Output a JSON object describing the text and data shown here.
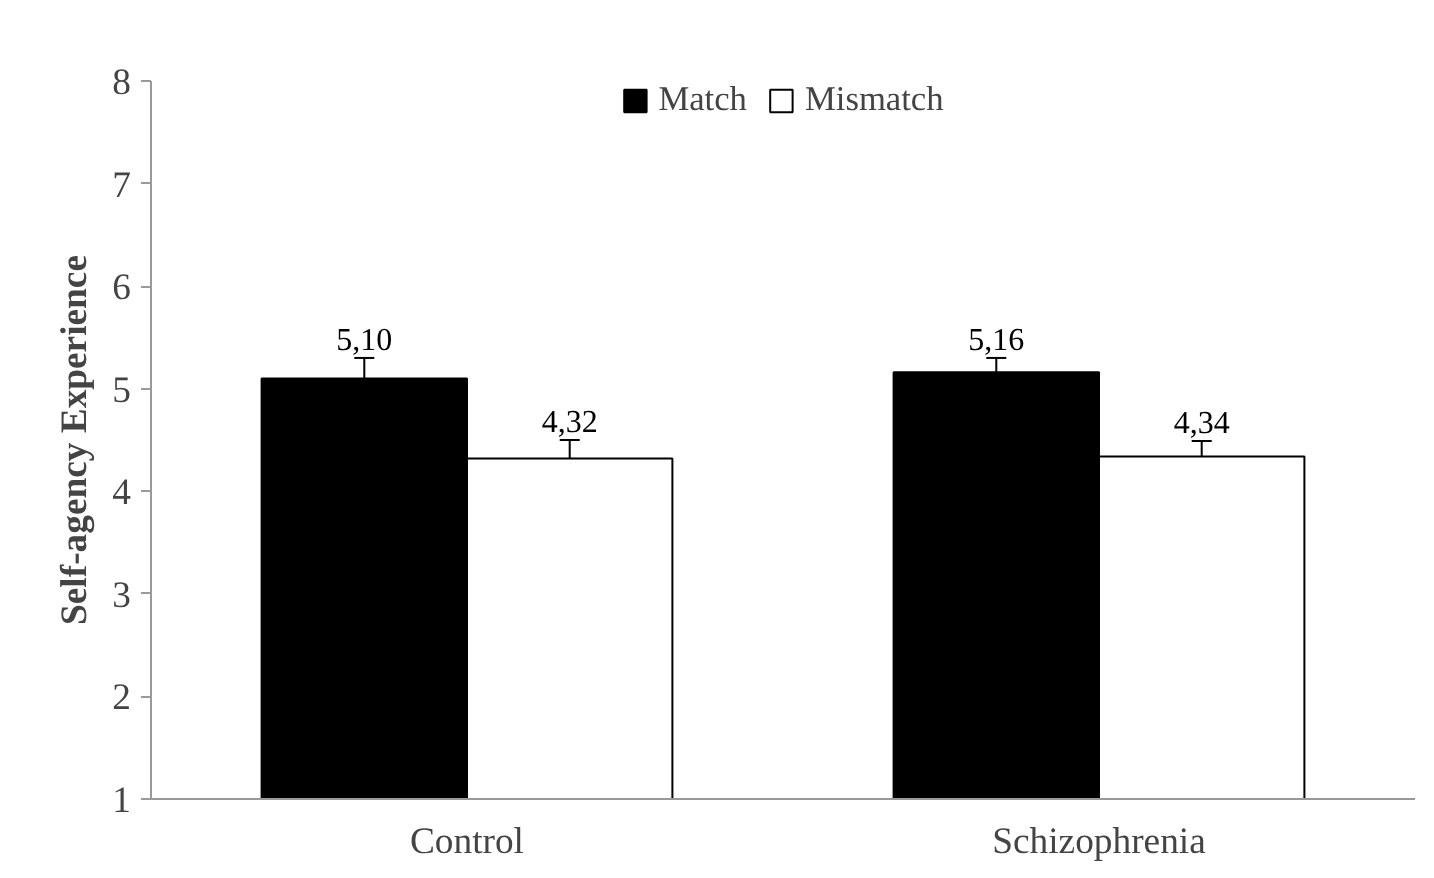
{
  "chart_data": {
    "type": "bar",
    "ylabel": "Self-agency Experience",
    "categories": [
      "Control",
      "Schizophrenia"
    ],
    "series": [
      {
        "name": "Match",
        "color": "#000000",
        "values": [
          5.1,
          5.16
        ],
        "errors": [
          0.2,
          0.14
        ],
        "value_labels": [
          "5,10",
          "5,16"
        ]
      },
      {
        "name": "Mismatch",
        "color": "#ffffff",
        "values": [
          4.32,
          4.34
        ],
        "errors": [
          0.18,
          0.15
        ],
        "value_labels": [
          "4,32",
          "4,34"
        ]
      }
    ],
    "ylim": [
      1,
      8
    ],
    "yticks": [
      1,
      2,
      3,
      4,
      5,
      6,
      7,
      8
    ],
    "grid": false,
    "legend": "top"
  }
}
